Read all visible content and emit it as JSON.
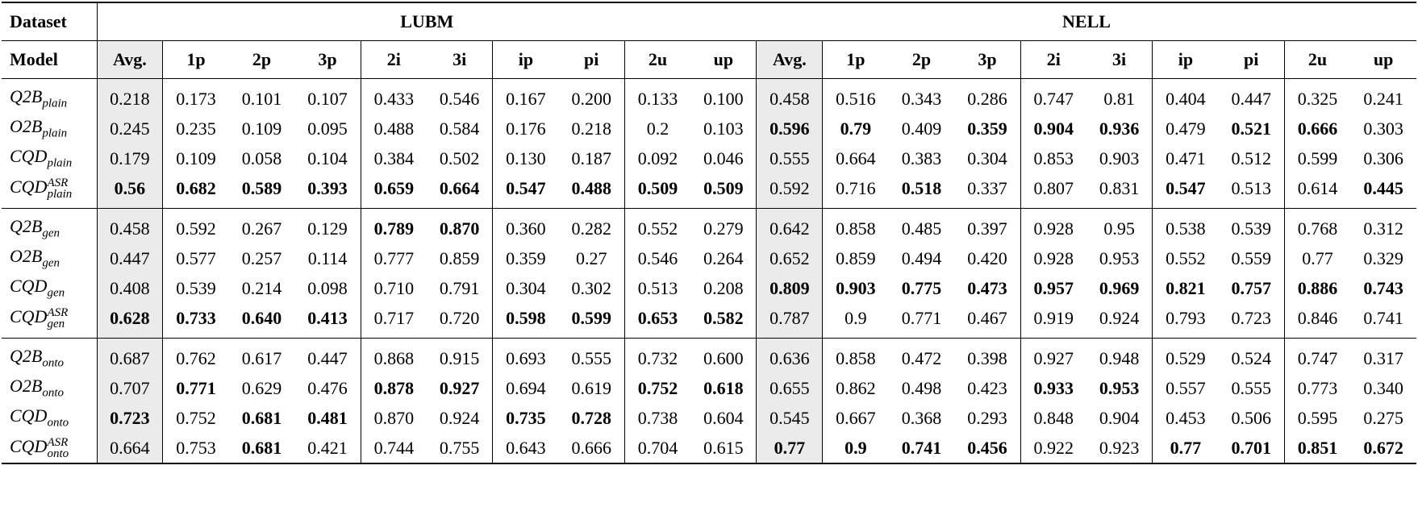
{
  "header": {
    "dataset_label": "Dataset",
    "model_label": "Model",
    "datasets": [
      "LUBM",
      "NELL"
    ],
    "columns": [
      "Avg.",
      "1p",
      "2p",
      "3p",
      "2i",
      "3i",
      "ip",
      "pi",
      "2u",
      "up"
    ]
  },
  "groups": [
    {
      "rows": [
        {
          "model": {
            "name": "Q2B",
            "sub": "plain"
          },
          "values": [
            "0.218",
            "0.173",
            "0.101",
            "0.107",
            "0.433",
            "0.546",
            "0.167",
            "0.200",
            "0.133",
            "0.100",
            "0.458",
            "0.516",
            "0.343",
            "0.286",
            "0.747",
            "0.81",
            "0.404",
            "0.447",
            "0.325",
            "0.241"
          ],
          "bold": []
        },
        {
          "model": {
            "name": "O2B",
            "sub": "plain"
          },
          "values": [
            "0.245",
            "0.235",
            "0.109",
            "0.095",
            "0.488",
            "0.584",
            "0.176",
            "0.218",
            "0.2",
            "0.103",
            "0.596",
            "0.79",
            "0.409",
            "0.359",
            "0.904",
            "0.936",
            "0.479",
            "0.521",
            "0.666",
            "0.303"
          ],
          "bold": [
            10,
            11,
            13,
            14,
            15,
            17,
            18
          ]
        },
        {
          "model": {
            "name": "CQD",
            "sub": "plain"
          },
          "values": [
            "0.179",
            "0.109",
            "0.058",
            "0.104",
            "0.384",
            "0.502",
            "0.130",
            "0.187",
            "0.092",
            "0.046",
            "0.555",
            "0.664",
            "0.383",
            "0.304",
            "0.853",
            "0.903",
            "0.471",
            "0.512",
            "0.599",
            "0.306"
          ],
          "bold": []
        },
        {
          "model": {
            "name": "CQD",
            "sup": "ASR",
            "sub": "plain"
          },
          "values": [
            "0.56",
            "0.682",
            "0.589",
            "0.393",
            "0.659",
            "0.664",
            "0.547",
            "0.488",
            "0.509",
            "0.509",
            "0.592",
            "0.716",
            "0.518",
            "0.337",
            "0.807",
            "0.831",
            "0.547",
            "0.513",
            "0.614",
            "0.445"
          ],
          "bold": [
            0,
            1,
            2,
            3,
            4,
            5,
            6,
            7,
            8,
            9,
            12,
            16,
            19
          ]
        }
      ]
    },
    {
      "rows": [
        {
          "model": {
            "name": "Q2B",
            "sub": "gen"
          },
          "values": [
            "0.458",
            "0.592",
            "0.267",
            "0.129",
            "0.789",
            "0.870",
            "0.360",
            "0.282",
            "0.552",
            "0.279",
            "0.642",
            "0.858",
            "0.485",
            "0.397",
            "0.928",
            "0.95",
            "0.538",
            "0.539",
            "0.768",
            "0.312"
          ],
          "bold": [
            4,
            5
          ]
        },
        {
          "model": {
            "name": "O2B",
            "sub": "gen"
          },
          "values": [
            "0.447",
            "0.577",
            "0.257",
            "0.114",
            "0.777",
            "0.859",
            "0.359",
            "0.27",
            "0.546",
            "0.264",
            "0.652",
            "0.859",
            "0.494",
            "0.420",
            "0.928",
            "0.953",
            "0.552",
            "0.559",
            "0.77",
            "0.329"
          ],
          "bold": []
        },
        {
          "model": {
            "name": "CQD",
            "sub": "gen"
          },
          "values": [
            "0.408",
            "0.539",
            "0.214",
            "0.098",
            "0.710",
            "0.791",
            "0.304",
            "0.302",
            "0.513",
            "0.208",
            "0.809",
            "0.903",
            "0.775",
            "0.473",
            "0.957",
            "0.969",
            "0.821",
            "0.757",
            "0.886",
            "0.743"
          ],
          "bold": [
            10,
            11,
            12,
            13,
            14,
            15,
            16,
            17,
            18,
            19
          ]
        },
        {
          "model": {
            "name": "CQD",
            "sup": "ASR",
            "sub": "gen"
          },
          "values": [
            "0.628",
            "0.733",
            "0.640",
            "0.413",
            "0.717",
            "0.720",
            "0.598",
            "0.599",
            "0.653",
            "0.582",
            "0.787",
            "0.9",
            "0.771",
            "0.467",
            "0.919",
            "0.924",
            "0.793",
            "0.723",
            "0.846",
            "0.741"
          ],
          "bold": [
            0,
            1,
            2,
            3,
            6,
            7,
            8,
            9
          ]
        }
      ]
    },
    {
      "rows": [
        {
          "model": {
            "name": "Q2B",
            "sub": "onto"
          },
          "values": [
            "0.687",
            "0.762",
            "0.617",
            "0.447",
            "0.868",
            "0.915",
            "0.693",
            "0.555",
            "0.732",
            "0.600",
            "0.636",
            "0.858",
            "0.472",
            "0.398",
            "0.927",
            "0.948",
            "0.529",
            "0.524",
            "0.747",
            "0.317"
          ],
          "bold": []
        },
        {
          "model": {
            "name": "O2B",
            "sub": "onto"
          },
          "values": [
            "0.707",
            "0.771",
            "0.629",
            "0.476",
            "0.878",
            "0.927",
            "0.694",
            "0.619",
            "0.752",
            "0.618",
            "0.655",
            "0.862",
            "0.498",
            "0.423",
            "0.933",
            "0.953",
            "0.557",
            "0.555",
            "0.773",
            "0.340"
          ],
          "bold": [
            1,
            4,
            5,
            8,
            9,
            14,
            15
          ]
        },
        {
          "model": {
            "name": "CQD",
            "sub": "onto"
          },
          "values": [
            "0.723",
            "0.752",
            "0.681",
            "0.481",
            "0.870",
            "0.924",
            "0.735",
            "0.728",
            "0.738",
            "0.604",
            "0.545",
            "0.667",
            "0.368",
            "0.293",
            "0.848",
            "0.904",
            "0.453",
            "0.506",
            "0.595",
            "0.275"
          ],
          "bold": [
            0,
            2,
            3,
            6,
            7
          ]
        },
        {
          "model": {
            "name": "CQD",
            "sup": "ASR",
            "sub": "onto"
          },
          "values": [
            "0.664",
            "0.753",
            "0.681",
            "0.421",
            "0.744",
            "0.755",
            "0.643",
            "0.666",
            "0.704",
            "0.615",
            "0.77",
            "0.9",
            "0.741",
            "0.456",
            "0.922",
            "0.923",
            "0.77",
            "0.701",
            "0.851",
            "0.672"
          ],
          "bold": [
            2,
            10,
            11,
            12,
            13,
            16,
            17,
            18,
            19
          ]
        }
      ]
    }
  ]
}
